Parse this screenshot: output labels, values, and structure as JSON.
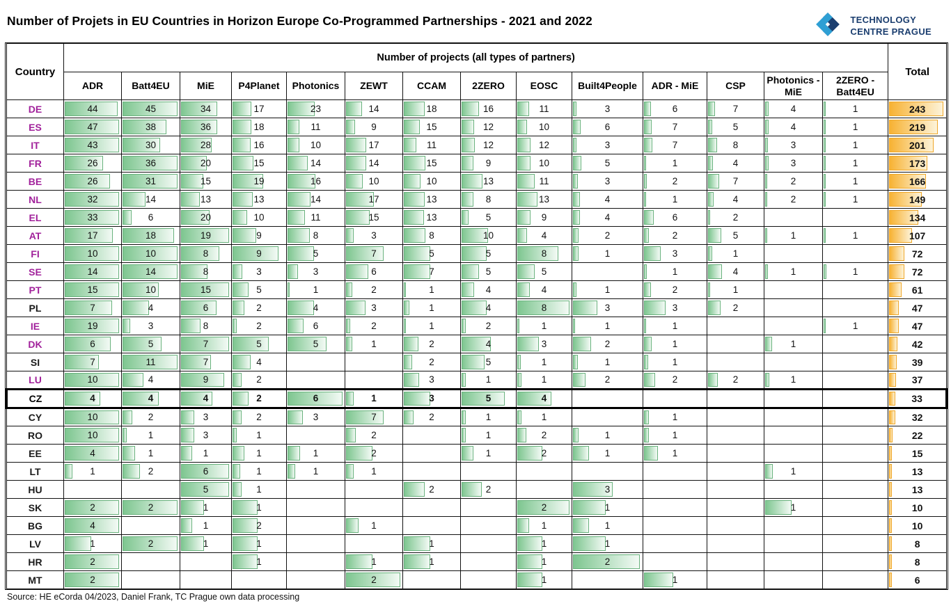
{
  "title": "Number of Projets in EU Countries in Horizon Europe Co-Programmed Partnerships - 2021 and 2022",
  "logo": {
    "line1": "TECHNOLOGY",
    "line2": "CENTRE PRAGUE"
  },
  "source": "Source: HE eCorda 04/2023, Daniel Frank, TC Prague own data processing",
  "colors": {
    "bar_green": "#7ec690",
    "bar_green_border": "#69b27d",
    "bar_orange": "#f7b233",
    "bar_orange_border": "#efa626",
    "country_highlight": "#a1219b",
    "logo_light_blue": "#2e9fd4",
    "logo_dark_blue": "#1b3e6f"
  },
  "chart_data": {
    "type": "table",
    "title": "Number of Projets in EU Countries in Horizon Europe Co-Programmed Partnerships - 2021 and 2022",
    "row_header": "Country",
    "group_header": "Number of projects (all types of partners)",
    "total_header": "Total",
    "columns": [
      "ADR",
      "Batt4EU",
      "MiE",
      "P4Planet",
      "Photonics",
      "ZEWT",
      "CCAM",
      "2ZERO",
      "EOSC",
      "Built4People",
      "ADR - MiE",
      "CSP",
      "Photonics - MiE",
      "2ZERO - Batt4EU"
    ],
    "bar_scaling": "green bars scaled to row maximum; orange total bars scaled to column maximum (243)",
    "rows": [
      {
        "country": "DE",
        "magenta": true,
        "bold": false,
        "values": [
          44,
          45,
          34,
          17,
          23,
          14,
          18,
          16,
          11,
          3,
          6,
          7,
          4,
          1
        ],
        "total": 243
      },
      {
        "country": "ES",
        "magenta": true,
        "bold": false,
        "values": [
          47,
          38,
          36,
          18,
          11,
          9,
          15,
          12,
          10,
          6,
          7,
          5,
          4,
          1
        ],
        "total": 219
      },
      {
        "country": "IT",
        "magenta": true,
        "bold": false,
        "values": [
          43,
          30,
          28,
          16,
          10,
          17,
          11,
          12,
          12,
          3,
          7,
          8,
          3,
          1
        ],
        "total": 201
      },
      {
        "country": "FR",
        "magenta": true,
        "bold": false,
        "values": [
          26,
          36,
          20,
          15,
          14,
          14,
          15,
          9,
          10,
          5,
          1,
          4,
          3,
          1
        ],
        "total": 173
      },
      {
        "country": "BE",
        "magenta": true,
        "bold": false,
        "values": [
          26,
          31,
          15,
          19,
          16,
          10,
          10,
          13,
          11,
          3,
          2,
          7,
          2,
          1
        ],
        "total": 166
      },
      {
        "country": "NL",
        "magenta": true,
        "bold": false,
        "values": [
          32,
          14,
          13,
          13,
          14,
          17,
          13,
          8,
          13,
          4,
          1,
          4,
          2,
          1
        ],
        "total": 149
      },
      {
        "country": "EL",
        "magenta": true,
        "bold": false,
        "values": [
          33,
          6,
          20,
          10,
          11,
          15,
          13,
          5,
          9,
          4,
          6,
          2,
          null,
          null
        ],
        "total": 134
      },
      {
        "country": "AT",
        "magenta": true,
        "bold": false,
        "values": [
          17,
          18,
          19,
          9,
          8,
          3,
          8,
          10,
          4,
          2,
          2,
          5,
          1,
          1
        ],
        "total": 107
      },
      {
        "country": "FI",
        "magenta": true,
        "bold": false,
        "values": [
          10,
          10,
          8,
          9,
          5,
          7,
          5,
          5,
          8,
          1,
          3,
          1,
          null,
          null
        ],
        "total": 72
      },
      {
        "country": "SE",
        "magenta": true,
        "bold": false,
        "values": [
          14,
          14,
          8,
          3,
          3,
          6,
          7,
          5,
          5,
          null,
          1,
          4,
          1,
          1
        ],
        "total": 72
      },
      {
        "country": "PT",
        "magenta": true,
        "bold": false,
        "values": [
          15,
          10,
          15,
          5,
          1,
          2,
          1,
          4,
          4,
          1,
          2,
          1,
          null,
          null
        ],
        "total": 61
      },
      {
        "country": "PL",
        "magenta": false,
        "bold": false,
        "values": [
          7,
          4,
          6,
          2,
          4,
          3,
          1,
          4,
          8,
          3,
          3,
          2,
          null,
          null
        ],
        "total": 47
      },
      {
        "country": "IE",
        "magenta": true,
        "bold": false,
        "values": [
          19,
          3,
          8,
          2,
          6,
          2,
          1,
          2,
          1,
          1,
          1,
          null,
          null,
          1
        ],
        "total": 47
      },
      {
        "country": "DK",
        "magenta": true,
        "bold": false,
        "values": [
          6,
          5,
          7,
          5,
          5,
          1,
          2,
          4,
          3,
          2,
          1,
          null,
          1,
          null
        ],
        "total": 42
      },
      {
        "country": "SI",
        "magenta": false,
        "bold": false,
        "values": [
          7,
          11,
          7,
          4,
          null,
          null,
          2,
          5,
          1,
          1,
          1,
          null,
          null,
          null
        ],
        "total": 39
      },
      {
        "country": "LU",
        "magenta": true,
        "bold": false,
        "values": [
          10,
          4,
          9,
          2,
          null,
          null,
          3,
          1,
          1,
          2,
          2,
          2,
          1,
          null
        ],
        "total": 37
      },
      {
        "country": "CZ",
        "magenta": false,
        "bold": true,
        "values": [
          4,
          4,
          4,
          2,
          6,
          1,
          3,
          5,
          4,
          null,
          null,
          null,
          null,
          null
        ],
        "total": 33
      },
      {
        "country": "CY",
        "magenta": false,
        "bold": false,
        "values": [
          10,
          2,
          3,
          2,
          3,
          7,
          2,
          1,
          1,
          null,
          1,
          null,
          null,
          null
        ],
        "total": 32
      },
      {
        "country": "RO",
        "magenta": false,
        "bold": false,
        "values": [
          10,
          1,
          3,
          1,
          null,
          2,
          null,
          1,
          2,
          1,
          1,
          null,
          null,
          null
        ],
        "total": 22
      },
      {
        "country": "EE",
        "magenta": false,
        "bold": false,
        "values": [
          4,
          1,
          1,
          1,
          1,
          2,
          null,
          1,
          2,
          1,
          1,
          null,
          null,
          null
        ],
        "total": 15
      },
      {
        "country": "LT",
        "magenta": false,
        "bold": false,
        "values": [
          1,
          2,
          6,
          1,
          1,
          1,
          null,
          null,
          null,
          null,
          null,
          null,
          1,
          null
        ],
        "total": 13
      },
      {
        "country": "HU",
        "magenta": false,
        "bold": false,
        "values": [
          null,
          null,
          5,
          1,
          null,
          null,
          2,
          2,
          null,
          3,
          null,
          null,
          null,
          null
        ],
        "total": 13
      },
      {
        "country": "SK",
        "magenta": false,
        "bold": false,
        "values": [
          2,
          2,
          1,
          1,
          null,
          null,
          null,
          null,
          2,
          1,
          null,
          null,
          1,
          null
        ],
        "total": 10
      },
      {
        "country": "BG",
        "magenta": false,
        "bold": false,
        "values": [
          4,
          null,
          1,
          2,
          null,
          1,
          null,
          null,
          1,
          1,
          null,
          null,
          null,
          null
        ],
        "total": 10
      },
      {
        "country": "LV",
        "magenta": false,
        "bold": false,
        "values": [
          1,
          2,
          1,
          1,
          null,
          null,
          1,
          null,
          1,
          1,
          null,
          null,
          null,
          null
        ],
        "total": 8
      },
      {
        "country": "HR",
        "magenta": false,
        "bold": false,
        "values": [
          2,
          null,
          null,
          1,
          null,
          1,
          1,
          null,
          1,
          2,
          null,
          null,
          null,
          null
        ],
        "total": 8
      },
      {
        "country": "MT",
        "magenta": false,
        "bold": false,
        "values": [
          2,
          null,
          null,
          null,
          null,
          2,
          null,
          null,
          1,
          null,
          1,
          null,
          null,
          null
        ],
        "total": 6
      }
    ]
  }
}
